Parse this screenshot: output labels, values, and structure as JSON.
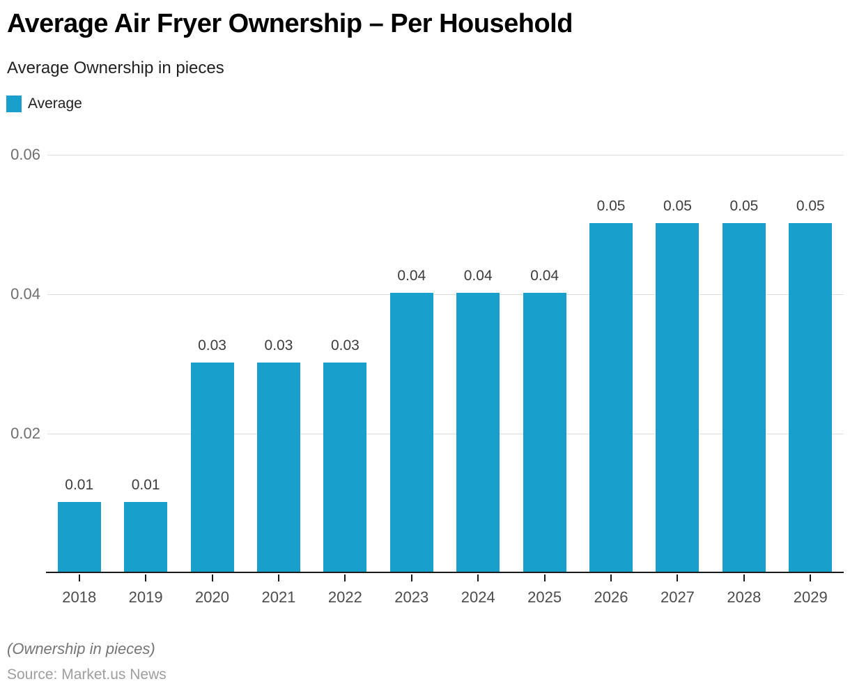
{
  "header": {
    "title": "Average Air Fryer Ownership – Per Household",
    "subtitle": "Average Ownership in pieces"
  },
  "legend": {
    "items": [
      {
        "label": "Average",
        "color": "#189fcc"
      }
    ]
  },
  "chart_data": {
    "type": "bar",
    "title": "Average Air Fryer Ownership – Per Household",
    "subtitle": "Average Ownership in pieces",
    "categories": [
      "2018",
      "2019",
      "2020",
      "2021",
      "2022",
      "2023",
      "2024",
      "2025",
      "2026",
      "2027",
      "2028",
      "2029"
    ],
    "series": [
      {
        "name": "Average",
        "values": [
          0.01,
          0.01,
          0.03,
          0.03,
          0.03,
          0.04,
          0.04,
          0.04,
          0.05,
          0.05,
          0.05,
          0.05
        ]
      }
    ],
    "data_labels": [
      "0.01",
      "0.01",
      "0.03",
      "0.03",
      "0.03",
      "0.04",
      "0.04",
      "0.04",
      "0.05",
      "0.05",
      "0.05",
      "0.05"
    ],
    "xlabel": "",
    "ylabel": "",
    "ylim": [
      0,
      0.06
    ],
    "yticks": [
      0.02,
      0.04,
      0.06
    ],
    "ytick_labels": [
      "0.02",
      "0.04",
      "0.06"
    ],
    "grid": true,
    "legend_position": "top-left",
    "bar_color": "#189fcc"
  },
  "footer": {
    "note": "(Ownership in pieces)",
    "source": "Source: Market.us News"
  }
}
